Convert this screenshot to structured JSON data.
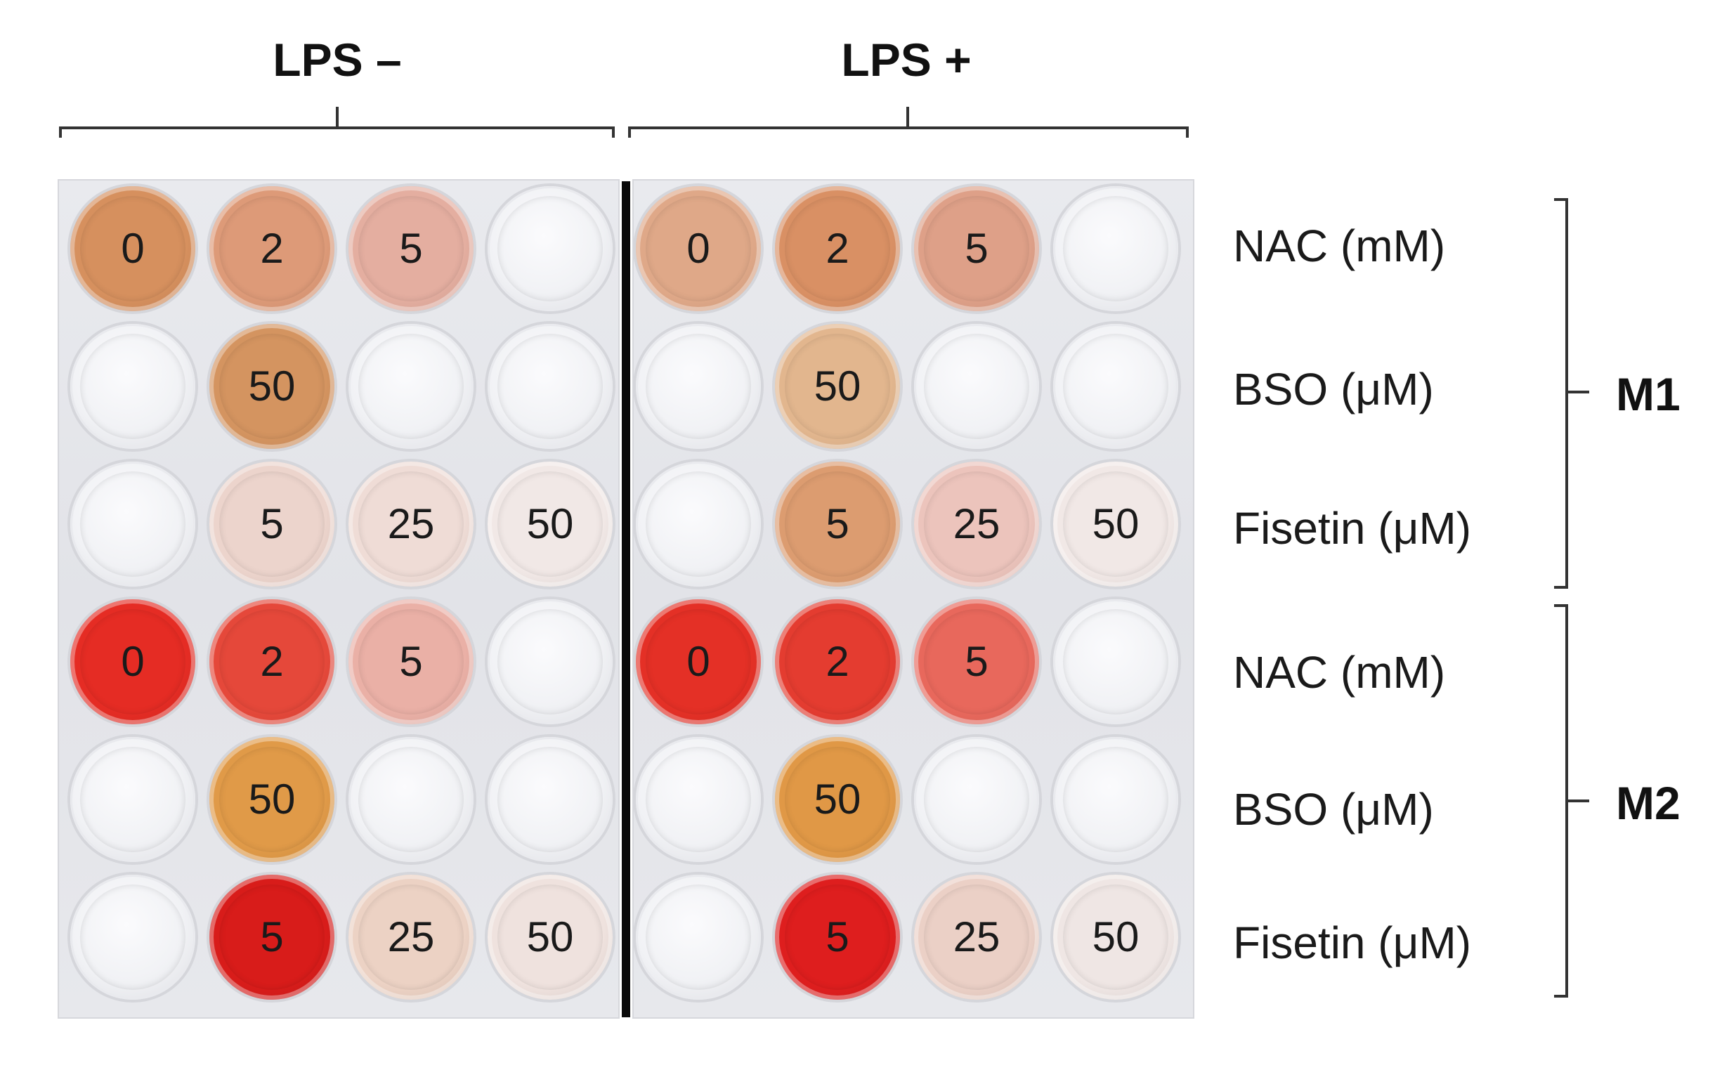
{
  "headers": {
    "left": "LPS –",
    "right": "LPS +"
  },
  "row_labels": [
    "NAC (mM)",
    "BSO (μM)",
    "Fisetin (μM)",
    "NAC (mM)",
    "BSO (μM)",
    "Fisetin (μM)"
  ],
  "groups": {
    "m1": "M1",
    "m2": "M2"
  },
  "plate": {
    "left": [
      [
        {
          "label": "0",
          "color": "#d6905e"
        },
        {
          "label": "2",
          "color": "#dd9a78"
        },
        {
          "label": "5",
          "color": "#e4aea0"
        },
        {
          "label": "",
          "color": ""
        }
      ],
      [
        {
          "label": "",
          "color": ""
        },
        {
          "label": "50",
          "color": "#d49460"
        },
        {
          "label": "",
          "color": ""
        },
        {
          "label": "",
          "color": ""
        }
      ],
      [
        {
          "label": "",
          "color": ""
        },
        {
          "label": "5",
          "color": "#ecd4cc"
        },
        {
          "label": "25",
          "color": "#efdcd6"
        },
        {
          "label": "50",
          "color": "#f1e8e6"
        }
      ],
      [
        {
          "label": "0",
          "color": "#e52c24"
        },
        {
          "label": "2",
          "color": "#e5483a"
        },
        {
          "label": "5",
          "color": "#eab0a6"
        },
        {
          "label": "",
          "color": ""
        }
      ],
      [
        {
          "label": "",
          "color": ""
        },
        {
          "label": "50",
          "color": "#e09a48"
        },
        {
          "label": "",
          "color": ""
        },
        {
          "label": "",
          "color": ""
        }
      ],
      [
        {
          "label": "",
          "color": ""
        },
        {
          "label": "5",
          "color": "#d81c1a"
        },
        {
          "label": "25",
          "color": "#ecd2c4"
        },
        {
          "label": "50",
          "color": "#efe2de"
        }
      ]
    ],
    "right": [
      [
        {
          "label": "0",
          "color": "#dfa888"
        },
        {
          "label": "2",
          "color": "#d99064"
        },
        {
          "label": "5",
          "color": "#dea088"
        },
        {
          "label": "",
          "color": ""
        }
      ],
      [
        {
          "label": "",
          "color": ""
        },
        {
          "label": "50",
          "color": "#e2b68e"
        },
        {
          "label": "",
          "color": ""
        },
        {
          "label": "",
          "color": ""
        }
      ],
      [
        {
          "label": "",
          "color": ""
        },
        {
          "label": "5",
          "color": "#dc9c70"
        },
        {
          "label": "25",
          "color": "#ecc4bc"
        },
        {
          "label": "50",
          "color": "#f1e8e6"
        }
      ],
      [
        {
          "label": "0",
          "color": "#e43026"
        },
        {
          "label": "2",
          "color": "#e43c30"
        },
        {
          "label": "5",
          "color": "#e8685c"
        },
        {
          "label": "",
          "color": ""
        }
      ],
      [
        {
          "label": "",
          "color": ""
        },
        {
          "label": "50",
          "color": "#e09846"
        },
        {
          "label": "",
          "color": ""
        },
        {
          "label": "",
          "color": ""
        }
      ],
      [
        {
          "label": "",
          "color": ""
        },
        {
          "label": "5",
          "color": "#de1e1e"
        },
        {
          "label": "25",
          "color": "#ebd0c6"
        },
        {
          "label": "50",
          "color": "#efe6e4"
        }
      ]
    ]
  }
}
